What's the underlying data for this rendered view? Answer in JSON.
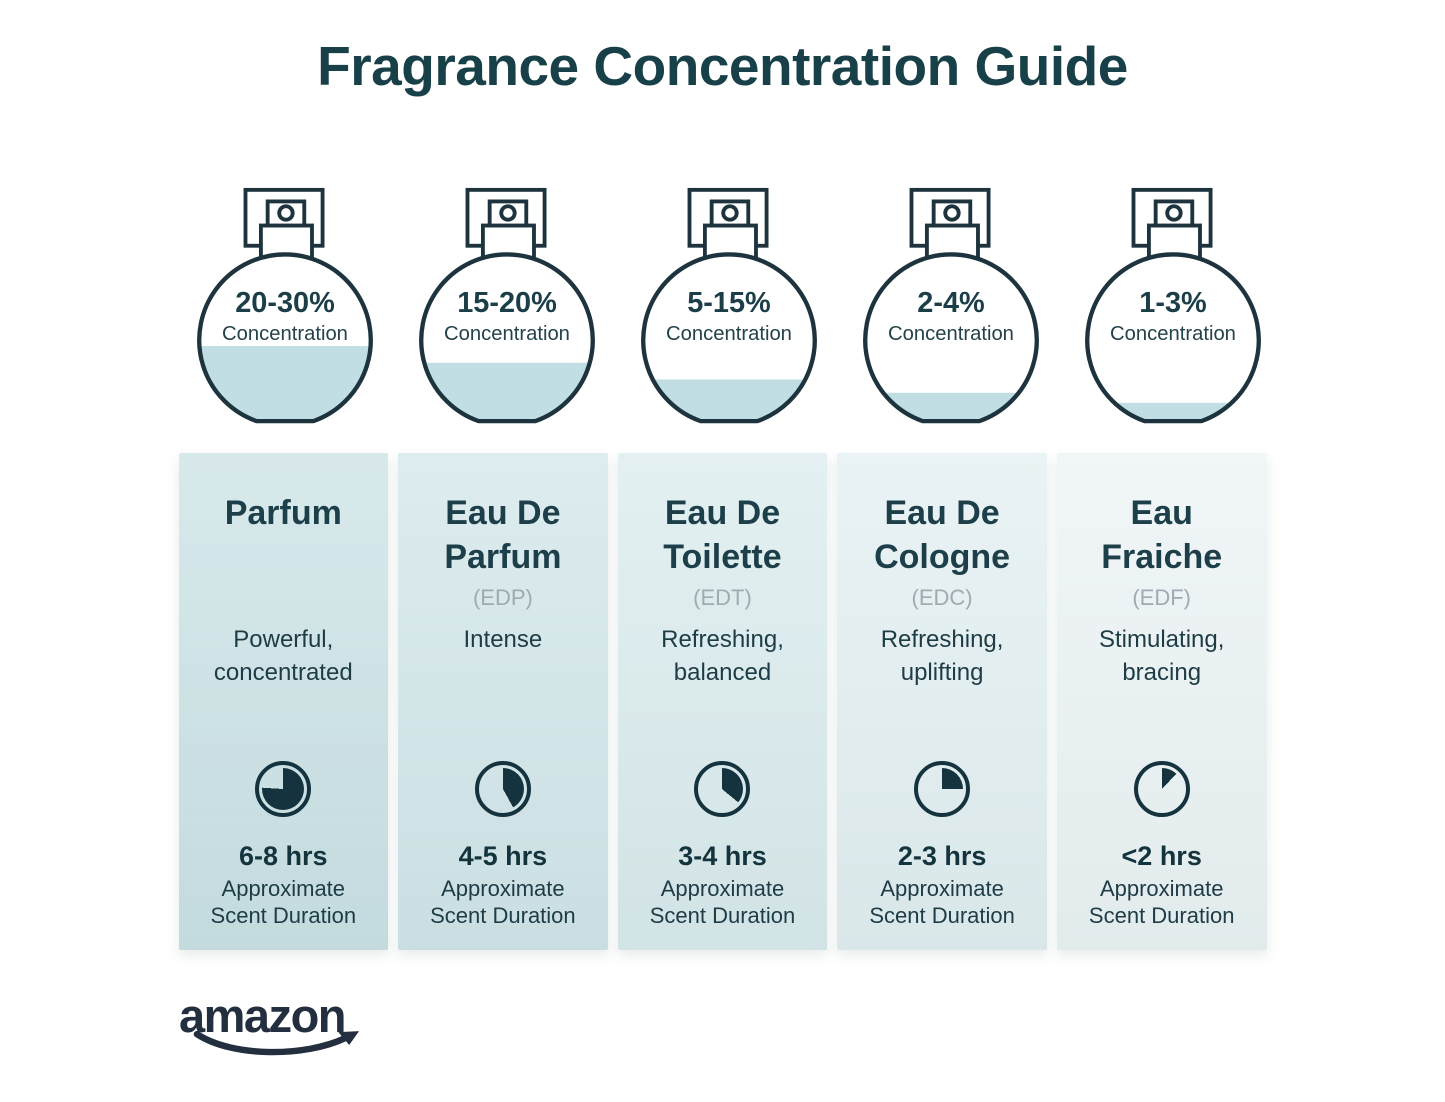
{
  "title": "Fragrance Concentration Guide",
  "brand": {
    "logo_text": "amazon"
  },
  "colors": {
    "title_text": "#174049",
    "heading_text": "#1d3f4a",
    "body_text": "#1e3c46",
    "muted_text": "#9fabb1",
    "outline": "#1d333d",
    "liquid": "#c0dee3",
    "clock": "#14333e",
    "logo": "#232f3e",
    "column_backgrounds": [
      "#cde3e6",
      "#d4e7ea",
      "#dcecee",
      "#e4f0f2",
      "#edf4f5"
    ]
  },
  "columns": [
    {
      "name_lines": [
        "Parfum"
      ],
      "abbreviation": "",
      "concentration": "20-30%",
      "concentration_label": "Concentration",
      "bottle_fill_percent": 45,
      "description_lines": [
        "Powerful,",
        "concentrated"
      ],
      "clock_percent": 76,
      "duration": "6-8 hrs",
      "duration_label_lines": [
        "Approximate",
        "Scent Duration"
      ]
    },
    {
      "name_lines": [
        "Eau De",
        "Parfum"
      ],
      "abbreviation": "(EDP)",
      "concentration": "15-20%",
      "concentration_label": "Concentration",
      "bottle_fill_percent": 35,
      "description_lines": [
        "Intense"
      ],
      "clock_percent": 42,
      "duration": "4-5 hrs",
      "duration_label_lines": [
        "Approximate",
        "Scent Duration"
      ]
    },
    {
      "name_lines": [
        "Eau De",
        "Toilette"
      ],
      "abbreviation": "(EDT)",
      "concentration": "5-15%",
      "concentration_label": "Concentration",
      "bottle_fill_percent": 25,
      "description_lines": [
        "Refreshing,",
        "balanced"
      ],
      "clock_percent": 36,
      "duration": "3-4 hrs",
      "duration_label_lines": [
        "Approximate",
        "Scent Duration"
      ]
    },
    {
      "name_lines": [
        "Eau De",
        "Cologne"
      ],
      "abbreviation": "(EDC)",
      "concentration": "2-4%",
      "concentration_label": "Concentration",
      "bottle_fill_percent": 17,
      "description_lines": [
        "Refreshing,",
        "uplifting"
      ],
      "clock_percent": 25,
      "duration": "2-3 hrs",
      "duration_label_lines": [
        "Approximate",
        "Scent Duration"
      ]
    },
    {
      "name_lines": [
        "Eau",
        "Fraiche"
      ],
      "abbreviation": "(EDF)",
      "concentration": "1-3%",
      "concentration_label": "Concentration",
      "bottle_fill_percent": 11,
      "description_lines": [
        "Stimulating,",
        "bracing"
      ],
      "clock_percent": 12,
      "duration": "<2 hrs",
      "duration_label_lines": [
        "Approximate",
        "Scent Duration"
      ]
    }
  ]
}
